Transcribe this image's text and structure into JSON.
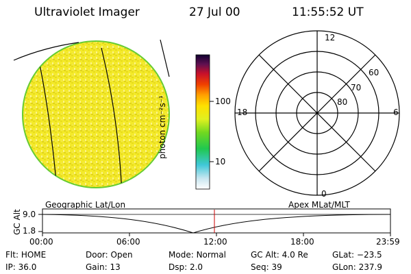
{
  "header": {
    "instrument": "Ultraviolet Imager",
    "date": "27 Jul 00",
    "time": "11:55:52 UT"
  },
  "colorbar": {
    "unit_label": "photon cm⁻²s⁻¹",
    "ticks": [
      "100",
      "10"
    ]
  },
  "polar_plot": {
    "mlt_labels": [
      "12",
      "18",
      "6",
      "0"
    ],
    "lat_labels": [
      "60",
      "70",
      "80"
    ]
  },
  "timeline": {
    "left_title": "Geographic Lat/Lon",
    "right_title": "Apex MLat/MLT",
    "y_axis_label": "GC Alt",
    "y_ticks": [
      "9.0",
      "1.8"
    ],
    "x_ticks": [
      "00:00",
      "06:00",
      "12:00",
      "18:00",
      "23:59"
    ]
  },
  "info": {
    "row1": [
      {
        "label": "Flt:",
        "value": "HOME"
      },
      {
        "label": "Door:",
        "value": "Open"
      },
      {
        "label": "Mode:",
        "value": "Normal"
      },
      {
        "label": "GC Alt:",
        "value": "4.0 Re"
      },
      {
        "label": "GLat:",
        "value": "−23.5"
      }
    ],
    "row2": [
      {
        "label": "IP:",
        "value": "36.0"
      },
      {
        "label": "Gain:",
        "value": "13"
      },
      {
        "label": "Dsp:",
        "value": "2.0"
      },
      {
        "label": "Seq:",
        "value": "39"
      },
      {
        "label": "GLon:",
        "value": "237.9"
      }
    ]
  },
  "colors": {
    "disk_fill": "#f4ea2a",
    "disk_edge": "#66cc33",
    "cursor_line": "#cc0000"
  }
}
